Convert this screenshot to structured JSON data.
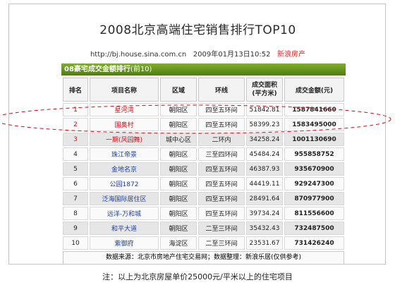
{
  "title": "2008北京高端住宅销售排行TOP10",
  "meta": {
    "url": "http://bj.house.sina.com.cn",
    "date": "2009年01月13日10:52",
    "source": "新浪房产"
  },
  "banner": {
    "main": "08豪宅成交金额排行",
    "sub": "(前10)"
  },
  "headers": [
    "排名",
    "项目名称",
    "区域",
    "环线",
    "成交面积\n(平方米)",
    "成交金额(元)"
  ],
  "rows": [
    {
      "rank": "1",
      "name": "星河湾",
      "area": "朝阳区",
      "ring": "四至五环间",
      "size": "51842.81",
      "amount": "1587841660"
    },
    {
      "rank": "2",
      "name": "国奥村",
      "area": "朝阳区",
      "ring": "四至五环间",
      "size": "58399.23",
      "amount": "1583495000"
    },
    {
      "rank": "3",
      "name": "一期(风园舞)",
      "area": "城中心区",
      "ring": "二环内",
      "size": "34258.24",
      "amount": "1001130690"
    },
    {
      "rank": "4",
      "name": "珠江帝景",
      "area": "朝阳区",
      "ring": "三至四环间",
      "size": "45484.24",
      "amount": "955858752"
    },
    {
      "rank": "5",
      "name": "金地名京",
      "area": "朝阳区",
      "ring": "四至五环间",
      "size": "46387.93",
      "amount": "935670900"
    },
    {
      "rank": "6",
      "name": "公园1872",
      "area": "朝阳区",
      "ring": "四至五环间",
      "size": "44419.11",
      "amount": "929247300"
    },
    {
      "rank": "7",
      "name": "泛海国际居住区",
      "area": "朝阳区",
      "ring": "四至五环间",
      "size": "28491.64",
      "amount": "870977900"
    },
    {
      "rank": "8",
      "name": "远洋-万和城",
      "area": "朝阳区",
      "ring": "四至五环间",
      "size": "39734.24",
      "amount": "811556600"
    },
    {
      "rank": "9",
      "name": "和平大道",
      "area": "朝阳区",
      "ring": "二至三环间",
      "size": "35432.43",
      "amount": "732487500"
    },
    {
      "rank": "10",
      "name": "紫御府",
      "area": "海淀区",
      "ring": "二至三环间",
      "size": "23531.67",
      "amount": "731426240"
    }
  ],
  "footer": "数据来源：北京市房地产住宅交易网；数据整理：新浪乐居(仅供参考)",
  "note": "注：以上为北京房屋单价25000元/平米以上的住宅项目",
  "colors": {
    "accent_red": "#d0101a",
    "name_blue": "#1d3fa0",
    "banner_green": "#5e8c1a"
  }
}
